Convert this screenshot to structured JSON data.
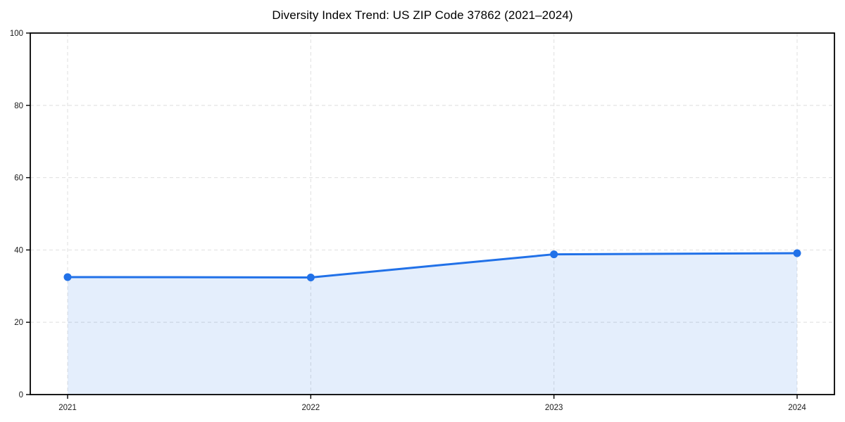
{
  "chart_data": {
    "type": "area",
    "title": "Diversity Index Trend: US ZIP Code 37862 (2021–2024)",
    "x": [
      "2021",
      "2022",
      "2023",
      "2024"
    ],
    "series": [
      {
        "name": "Diversity Index",
        "values": [
          32.5,
          32.4,
          38.8,
          39.1
        ]
      }
    ],
    "xlabel": "",
    "ylabel": "",
    "ylim": [
      0,
      100
    ],
    "yticks": [
      0,
      20,
      40,
      60,
      80,
      100
    ],
    "grid": true,
    "grid_style": "dashed",
    "legend_position": "none",
    "colors": {
      "line": "#2171e8",
      "marker": "#2171e8",
      "fill": "rgba(33,113,232,0.12)",
      "grid": "#e2e2e2",
      "axis": "#000000",
      "tick_label": "#1a1a1a"
    }
  }
}
